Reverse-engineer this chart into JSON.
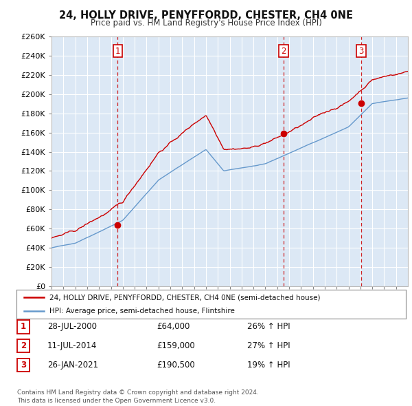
{
  "title": "24, HOLLY DRIVE, PENYFFORDD, CHESTER, CH4 0NE",
  "subtitle": "Price paid vs. HM Land Registry's House Price Index (HPI)",
  "ylim": [
    0,
    260000
  ],
  "yticks": [
    0,
    20000,
    40000,
    60000,
    80000,
    100000,
    120000,
    140000,
    160000,
    180000,
    200000,
    220000,
    240000,
    260000
  ],
  "xlim_start": 1995.0,
  "xlim_end": 2025.0,
  "sale_color": "#cc0000",
  "hpi_color": "#6699cc",
  "hpi_fill_color": "#dce8f5",
  "vline_color": "#cc0000",
  "transactions": [
    {
      "date": 2000.57,
      "price": 64000,
      "label": "1"
    },
    {
      "date": 2014.53,
      "price": 159000,
      "label": "2"
    },
    {
      "date": 2021.07,
      "price": 190500,
      "label": "3"
    }
  ],
  "legend_house_label": "24, HOLLY DRIVE, PENYFFORDD, CHESTER, CH4 0NE (semi-detached house)",
  "legend_hpi_label": "HPI: Average price, semi-detached house, Flintshire",
  "table_rows": [
    {
      "num": "1",
      "date": "28-JUL-2000",
      "price": "£64,000",
      "change": "26% ↑ HPI"
    },
    {
      "num": "2",
      "date": "11-JUL-2014",
      "price": "£159,000",
      "change": "27% ↑ HPI"
    },
    {
      "num": "3",
      "date": "26-JAN-2021",
      "price": "£190,500",
      "change": "19% ↑ HPI"
    }
  ],
  "footnote": "Contains HM Land Registry data © Crown copyright and database right 2024.\nThis data is licensed under the Open Government Licence v3.0.",
  "background_color": "#ffffff",
  "chart_bg_color": "#dce8f5",
  "grid_color": "#ffffff"
}
